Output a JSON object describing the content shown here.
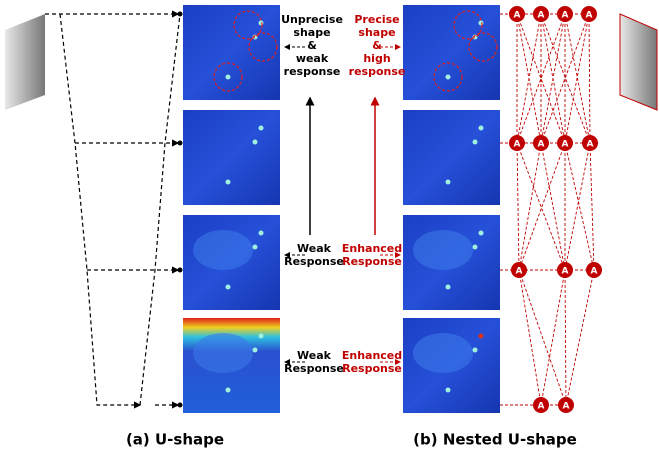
{
  "labels": {
    "left_top": [
      "Unprecise",
      "shape",
      "&",
      "weak",
      "response"
    ],
    "right_top": [
      "Precise",
      "shape",
      "&",
      "high",
      "response"
    ],
    "left_mid": [
      "Weak",
      "Response"
    ],
    "right_mid": [
      "Enhanced",
      "Response"
    ],
    "left_low": [
      "Weak",
      "Response"
    ],
    "right_low": [
      "Enhanced",
      "Response"
    ]
  },
  "captions": {
    "a": "(a)  U-shape",
    "b": "(b)  Nested U-shape"
  },
  "node_label": "A"
}
